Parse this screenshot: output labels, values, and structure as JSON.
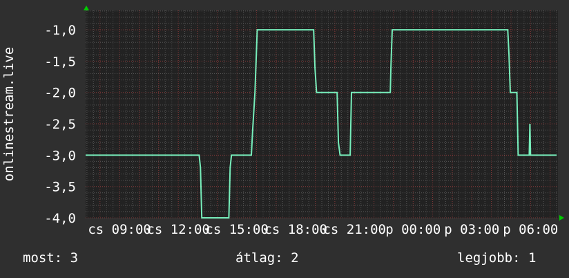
{
  "chart_data": {
    "type": "line",
    "ylabel": "onlinestream.live",
    "ylim": [
      -4.0,
      -0.69
    ],
    "yticks": [
      "-1,0",
      "-1,5",
      "-2,0",
      "-2,5",
      "-3,0",
      "-3,5",
      "-4,0"
    ],
    "ytick_values": [
      -1.0,
      -1.5,
      -2.0,
      -2.5,
      -3.0,
      -3.5,
      -4.0
    ],
    "xlim": [
      "cs 07:16",
      "p 07:24"
    ],
    "xticks": [
      "cs 09:00",
      "cs 12:00",
      "cs 15:00",
      "cs 18:00",
      "cs 21:00",
      "p 00:00",
      "p 03:00",
      "p 06:00"
    ],
    "grid": true,
    "line_color": "#77eebb",
    "series": [
      {
        "points": [
          [
            "cs 07:16",
            -3.0
          ],
          [
            "cs 13:04",
            -3.0
          ],
          [
            "cs 13:08",
            -3.2
          ],
          [
            "cs 13:12",
            -4.0
          ],
          [
            "cs 14:35",
            -4.0
          ],
          [
            "cs 14:39",
            -3.2
          ],
          [
            "cs 14:43",
            -3.0
          ],
          [
            "cs 15:44",
            -3.0
          ],
          [
            "cs 15:48",
            -2.6
          ],
          [
            "cs 15:55",
            -2.0
          ],
          [
            "cs 16:02",
            -1.0
          ],
          [
            "cs 18:55",
            -1.0
          ],
          [
            "cs 18:59",
            -1.6
          ],
          [
            "cs 19:04",
            -2.0
          ],
          [
            "cs 20:07",
            -2.0
          ],
          [
            "cs 20:11",
            -2.8
          ],
          [
            "cs 20:16",
            -3.0
          ],
          [
            "cs 20:47",
            -3.0
          ],
          [
            "cs 20:51",
            -2.0
          ],
          [
            "cs 22:50",
            -2.0
          ],
          [
            "cs 22:52",
            -1.6
          ],
          [
            "cs 22:56",
            -1.0
          ],
          [
            "p 04:50",
            -1.0
          ],
          [
            "p 04:54",
            -1.4
          ],
          [
            "p 04:58",
            -2.0
          ],
          [
            "p 05:18",
            -2.0
          ],
          [
            "p 05:22",
            -3.0
          ],
          [
            "p 05:56",
            -3.0
          ],
          [
            "p 05:58",
            -2.5
          ],
          [
            "p 06:00",
            -3.0
          ],
          [
            "p 07:20",
            -3.0
          ]
        ]
      }
    ]
  },
  "footer": {
    "current": "most: 3",
    "average": "átlag: 2",
    "best": "legjobb: 1"
  },
  "colors": {
    "background": "#2f2f2f",
    "plot_background": "#222222",
    "minor_grid": "#555555",
    "major_grid": "#8a3a3a",
    "arrow": "#00cc00"
  }
}
